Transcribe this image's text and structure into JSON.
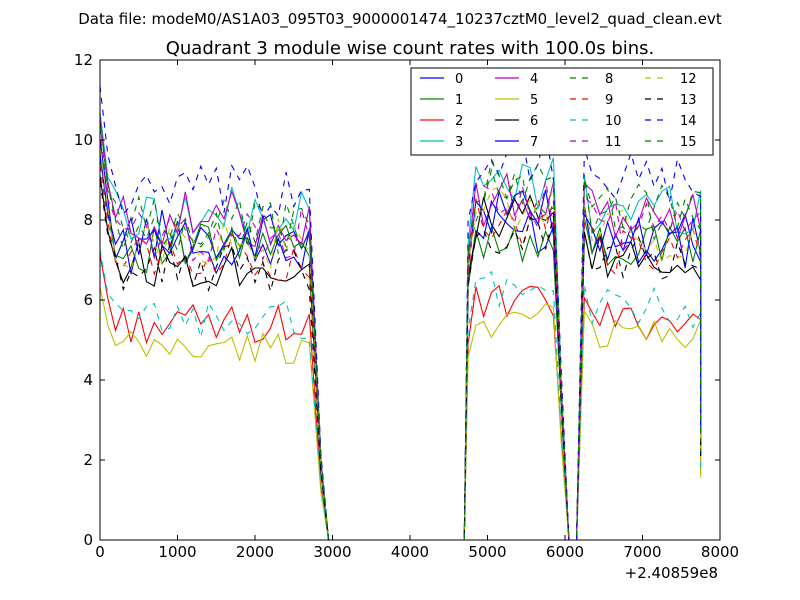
{
  "chart_data": {
    "type": "line",
    "suptitle": "Data file: modeM0/AS1A03_095T03_9000001474_10237cztM0_level2_quad_clean.evt",
    "title": "Quadrant 3 module wise count rates with 100.0s bins.",
    "x_offset_label": "+2.40859e8",
    "xlim": [
      0,
      8000
    ],
    "ylim": [
      0,
      12
    ],
    "xticks": [
      0,
      1000,
      2000,
      3000,
      4000,
      5000,
      6000,
      7000,
      8000
    ],
    "yticks": [
      0,
      2,
      4,
      6,
      8,
      10,
      12
    ],
    "xtick_labels": [
      "0",
      "1000",
      "2000",
      "3000",
      "4000",
      "5000",
      "6000",
      "7000",
      "8000"
    ],
    "ytick_labels": [
      "0",
      "2",
      "4",
      "6",
      "8",
      "10",
      "12"
    ],
    "legend_position": "top-right",
    "legend_columns": 4,
    "bin_width": 100,
    "segments": [
      {
        "t0": 0,
        "t1": 2750,
        "step": 100
      },
      {
        "t0": 4750,
        "t1": 5850,
        "step": 100
      },
      {
        "t0": 6250,
        "t1": 7750,
        "step": 100
      }
    ],
    "series": [
      {
        "name": "0",
        "color": "#0000ff",
        "dash": "solid",
        "levels": [
          7.6,
          7.8,
          7.6
        ]
      },
      {
        "name": "1",
        "color": "#008000",
        "dash": "solid",
        "levels": [
          7.3,
          7.6,
          7.3
        ]
      },
      {
        "name": "2",
        "color": "#ff0000",
        "dash": "solid",
        "levels": [
          5.4,
          5.9,
          5.5
        ]
      },
      {
        "name": "3",
        "color": "#00bfbf",
        "dash": "solid",
        "levels": [
          8.1,
          8.9,
          8.3
        ]
      },
      {
        "name": "4",
        "color": "#bf00bf",
        "dash": "solid",
        "levels": [
          8.0,
          8.5,
          8.1
        ]
      },
      {
        "name": "5",
        "color": "#bfbf00",
        "dash": "solid",
        "levels": [
          4.8,
          5.5,
          5.2
        ]
      },
      {
        "name": "6",
        "color": "#000000",
        "dash": "solid",
        "levels": [
          6.9,
          8.0,
          7.0
        ]
      },
      {
        "name": "7",
        "color": "#0000ff",
        "dash": "solid",
        "levels": [
          7.3,
          8.2,
          7.4
        ]
      },
      {
        "name": "8",
        "color": "#008000",
        "dash": "dashed",
        "levels": [
          7.9,
          8.6,
          8.2
        ]
      },
      {
        "name": "9",
        "color": "#ff0000",
        "dash": "dashed",
        "levels": [
          7.1,
          7.9,
          7.2
        ]
      },
      {
        "name": "10",
        "color": "#00bfbf",
        "dash": "dashed",
        "levels": [
          5.5,
          6.3,
          5.8
        ]
      },
      {
        "name": "11",
        "color": "#bf00bf",
        "dash": "dashed",
        "levels": [
          7.6,
          8.4,
          7.8
        ]
      },
      {
        "name": "12",
        "color": "#bfbf00",
        "dash": "dashed",
        "levels": [
          7.4,
          8.3,
          7.6
        ]
      },
      {
        "name": "13",
        "color": "#000000",
        "dash": "dashed",
        "levels": [
          6.8,
          7.7,
          7.0
        ]
      },
      {
        "name": "14",
        "color": "#0000ff",
        "dash": "dashed",
        "levels": [
          8.6,
          9.6,
          8.9
        ]
      },
      {
        "name": "15",
        "color": "#008000",
        "dash": "dashed",
        "levels": [
          7.8,
          8.8,
          8.2
        ]
      }
    ]
  }
}
